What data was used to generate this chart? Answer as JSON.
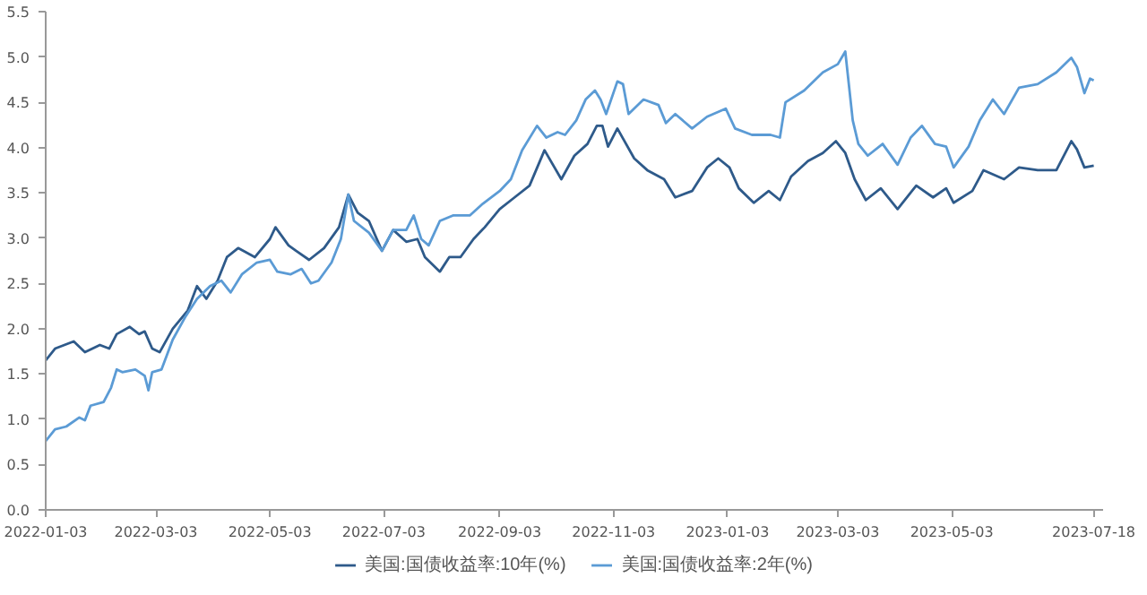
{
  "chart_data": {
    "type": "line",
    "legend": "bottom",
    "grid": false,
    "marker": "none",
    "line_style": "solid",
    "xlim": [
      "2022-01-03",
      "2023-07-23"
    ],
    "ylim": [
      0,
      5.5
    ],
    "xticks": [
      {
        "value": "2022-01-03",
        "label": "2022-01-03"
      },
      {
        "value": "2022-03-03",
        "label": "2022-03-03"
      },
      {
        "value": "2022-05-03",
        "label": "2022-05-03"
      },
      {
        "value": "2022-07-03",
        "label": "2022-07-03"
      },
      {
        "value": "2022-09-03",
        "label": "2022-09-03"
      },
      {
        "value": "2022-11-03",
        "label": "2022-11-03"
      },
      {
        "value": "2023-01-03",
        "label": "2023-01-03"
      },
      {
        "value": "2023-03-03",
        "label": "2023-03-03"
      },
      {
        "value": "2023-05-03",
        "label": "2023-05-03"
      },
      {
        "value": "2023-07-18",
        "label": "2023-07-18"
      }
    ],
    "yticks": [
      {
        "value": 0,
        "label": "0.0"
      },
      {
        "value": 0.5,
        "label": "0.5"
      },
      {
        "value": 1,
        "label": "1.0"
      },
      {
        "value": 1.5,
        "label": "1.5"
      },
      {
        "value": 2,
        "label": "2.0"
      },
      {
        "value": 2.5,
        "label": "2.5"
      },
      {
        "value": 3,
        "label": "3.0"
      },
      {
        "value": 3.5,
        "label": "3.5"
      },
      {
        "value": 4,
        "label": "4.0"
      },
      {
        "value": 4.5,
        "label": "4.5"
      },
      {
        "value": 5,
        "label": "5.0"
      },
      {
        "value": 5.5,
        "label": "5.5"
      }
    ],
    "series": [
      {
        "name": "美国:国债收益率:10年(%)",
        "color": "#2e5a8a",
        "x": [
          "2022-01-03",
          "2022-01-08",
          "2022-01-18",
          "2022-01-24",
          "2022-02-01",
          "2022-02-06",
          "2022-02-10",
          "2022-02-17",
          "2022-02-22",
          "2022-02-25",
          "2022-03-01",
          "2022-03-05",
          "2022-03-12",
          "2022-03-20",
          "2022-03-25",
          "2022-03-30",
          "2022-04-05",
          "2022-04-10",
          "2022-04-16",
          "2022-04-25",
          "2022-05-03",
          "2022-05-06",
          "2022-05-13",
          "2022-05-17",
          "2022-05-24",
          "2022-06-01",
          "2022-06-09",
          "2022-06-14",
          "2022-06-19",
          "2022-06-25",
          "2022-07-02",
          "2022-07-08",
          "2022-07-15",
          "2022-07-21",
          "2022-07-25",
          "2022-08-02",
          "2022-08-07",
          "2022-08-13",
          "2022-08-20",
          "2022-08-26",
          "2022-09-03",
          "2022-09-11",
          "2022-09-19",
          "2022-09-27",
          "2022-10-06",
          "2022-10-13",
          "2022-10-20",
          "2022-10-25",
          "2022-10-28",
          "2022-10-31",
          "2022-11-05",
          "2022-11-14",
          "2022-11-21",
          "2022-11-30",
          "2022-12-06",
          "2022-12-15",
          "2022-12-23",
          "2022-12-29",
          "2023-01-04",
          "2023-01-09",
          "2023-01-17",
          "2023-01-25",
          "2023-01-31",
          "2023-02-06",
          "2023-02-15",
          "2023-02-23",
          "2023-03-02",
          "2023-03-07",
          "2023-03-12",
          "2023-03-18",
          "2023-03-26",
          "2023-04-04",
          "2023-04-14",
          "2023-04-23",
          "2023-04-30",
          "2023-05-04",
          "2023-05-14",
          "2023-05-20",
          "2023-05-31",
          "2023-06-08",
          "2023-06-18",
          "2023-06-28",
          "2023-07-06",
          "2023-07-09",
          "2023-07-13",
          "2023-07-18"
        ],
        "values": [
          1.65,
          1.78,
          1.86,
          1.74,
          1.82,
          1.78,
          1.94,
          2.02,
          1.94,
          1.97,
          1.78,
          1.74,
          2.0,
          2.2,
          2.47,
          2.33,
          2.53,
          2.79,
          2.89,
          2.79,
          2.99,
          3.12,
          2.92,
          2.86,
          2.76,
          2.89,
          3.12,
          3.48,
          3.28,
          3.19,
          2.86,
          3.09,
          2.96,
          2.99,
          2.79,
          2.63,
          2.79,
          2.79,
          2.99,
          3.12,
          3.32,
          3.45,
          3.58,
          3.97,
          3.65,
          3.91,
          4.04,
          4.24,
          4.24,
          4.01,
          4.21,
          3.88,
          3.75,
          3.65,
          3.45,
          3.52,
          3.78,
          3.88,
          3.78,
          3.55,
          3.39,
          3.52,
          3.42,
          3.68,
          3.85,
          3.94,
          4.07,
          3.94,
          3.65,
          3.42,
          3.55,
          3.32,
          3.58,
          3.45,
          3.55,
          3.39,
          3.52,
          3.75,
          3.65,
          3.78,
          3.75,
          3.75,
          4.07,
          3.98,
          3.78,
          3.8
        ]
      },
      {
        "name": "美国:国债收益率:2年(%)",
        "color": "#5b9bd5",
        "x": [
          "2022-01-03",
          "2022-01-08",
          "2022-01-14",
          "2022-01-21",
          "2022-01-24",
          "2022-01-27",
          "2022-02-03",
          "2022-02-07",
          "2022-02-10",
          "2022-02-13",
          "2022-02-20",
          "2022-02-25",
          "2022-02-27",
          "2022-03-01",
          "2022-03-06",
          "2022-03-12",
          "2022-03-19",
          "2022-03-25",
          "2022-04-01",
          "2022-04-07",
          "2022-04-12",
          "2022-04-18",
          "2022-04-26",
          "2022-05-03",
          "2022-05-07",
          "2022-05-14",
          "2022-05-20",
          "2022-05-25",
          "2022-05-29",
          "2022-06-05",
          "2022-06-10",
          "2022-06-14",
          "2022-06-17",
          "2022-06-25",
          "2022-07-02",
          "2022-07-08",
          "2022-07-15",
          "2022-07-19",
          "2022-07-23",
          "2022-07-27",
          "2022-08-02",
          "2022-08-09",
          "2022-08-18",
          "2022-08-25",
          "2022-09-03",
          "2022-09-09",
          "2022-09-15",
          "2022-09-23",
          "2022-09-28",
          "2022-10-04",
          "2022-10-08",
          "2022-10-14",
          "2022-10-19",
          "2022-10-24",
          "2022-10-27",
          "2022-10-30",
          "2022-11-05",
          "2022-11-08",
          "2022-11-11",
          "2022-11-19",
          "2022-11-27",
          "2022-12-01",
          "2022-12-06",
          "2022-12-15",
          "2022-12-23",
          "2023-01-02",
          "2023-01-07",
          "2023-01-16",
          "2023-01-26",
          "2023-01-31",
          "2023-02-03",
          "2023-02-13",
          "2023-02-23",
          "2023-03-03",
          "2023-03-07",
          "2023-03-11",
          "2023-03-14",
          "2023-03-19",
          "2023-03-27",
          "2023-04-04",
          "2023-04-11",
          "2023-04-17",
          "2023-04-24",
          "2023-04-30",
          "2023-05-04",
          "2023-05-12",
          "2023-05-18",
          "2023-05-25",
          "2023-05-31",
          "2023-06-08",
          "2023-06-18",
          "2023-06-28",
          "2023-07-06",
          "2023-07-09",
          "2023-07-13",
          "2023-07-16",
          "2023-07-18"
        ],
        "values": [
          0.76,
          0.89,
          0.92,
          1.02,
          0.99,
          1.15,
          1.19,
          1.35,
          1.55,
          1.52,
          1.55,
          1.48,
          1.32,
          1.52,
          1.55,
          1.88,
          2.14,
          2.33,
          2.47,
          2.53,
          2.4,
          2.6,
          2.73,
          2.76,
          2.63,
          2.6,
          2.66,
          2.5,
          2.53,
          2.73,
          2.99,
          3.48,
          3.19,
          3.06,
          2.86,
          3.09,
          3.09,
          3.25,
          2.99,
          2.92,
          3.19,
          3.25,
          3.25,
          3.38,
          3.52,
          3.65,
          3.97,
          4.24,
          4.11,
          4.17,
          4.14,
          4.3,
          4.53,
          4.63,
          4.53,
          4.37,
          4.73,
          4.7,
          4.37,
          4.53,
          4.47,
          4.27,
          4.37,
          4.21,
          4.34,
          4.43,
          4.21,
          4.14,
          4.14,
          4.11,
          4.5,
          4.63,
          4.83,
          4.92,
          5.06,
          4.3,
          4.04,
          3.91,
          4.04,
          3.81,
          4.11,
          4.24,
          4.04,
          4.01,
          3.78,
          4.01,
          4.3,
          4.53,
          4.37,
          4.66,
          4.7,
          4.83,
          4.99,
          4.89,
          4.6,
          4.76,
          4.74
        ]
      }
    ]
  }
}
